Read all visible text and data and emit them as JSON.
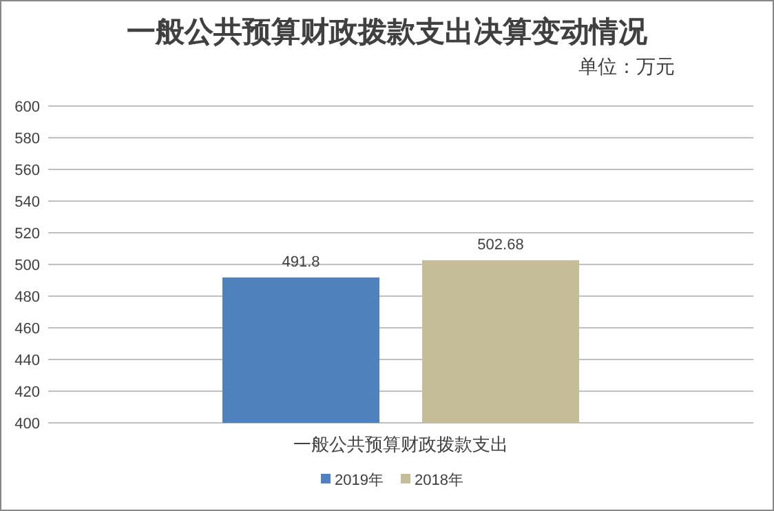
{
  "chart_data": {
    "type": "bar",
    "title": "一般公共预算财政拨款支出决算变动情况",
    "subtitle": "单位：万元",
    "categories": [
      "一般公共预算财政拨款支出"
    ],
    "series": [
      {
        "name": "2019年",
        "color": "#4f81bd",
        "values": [
          491.8
        ]
      },
      {
        "name": "2018年",
        "color": "#c4bd97",
        "values": [
          502.68
        ]
      }
    ],
    "ylim": [
      400,
      600
    ],
    "yticks": [
      400,
      420,
      440,
      460,
      480,
      500,
      520,
      540,
      560,
      580,
      600
    ],
    "grid": "y",
    "legend": "bottom",
    "data_labels": true
  }
}
